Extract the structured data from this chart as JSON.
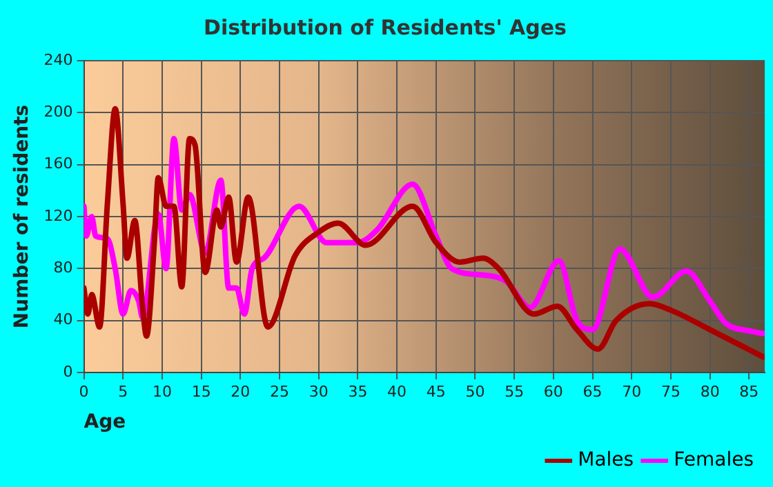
{
  "chart_data": {
    "type": "line",
    "title": "Distribution of Residents' Ages",
    "xlabel": "Age",
    "ylabel": "Number of residents",
    "xlim": [
      0,
      87
    ],
    "xticks": [
      0,
      5,
      10,
      15,
      20,
      25,
      30,
      35,
      40,
      45,
      50,
      55,
      60,
      65,
      70,
      75,
      80,
      85
    ],
    "ylim": [
      0,
      240
    ],
    "yticks": [
      0,
      40,
      80,
      120,
      160,
      200,
      240
    ],
    "grid": true,
    "legend": "bottom right",
    "marker": "none",
    "line_style": "solid",
    "series": [
      {
        "name": "Males",
        "color": "#aa0000",
        "x": [
          0,
          0.5,
          1,
          2,
          3,
          4,
          5,
          5.5,
          6.5,
          7.5,
          8,
          9,
          9.5,
          10.5,
          11.5,
          12.5,
          13.5,
          14.2,
          15.5,
          17,
          17.5,
          18.5,
          19.5,
          21,
          23.5,
          27,
          30,
          32.5,
          36,
          42,
          45,
          48,
          51,
          53,
          57.5,
          60.5,
          63,
          65.7,
          68,
          72.3,
          75,
          80,
          86.8
        ],
        "values": [
          65,
          45,
          60,
          35,
          130,
          203,
          130,
          88,
          117,
          50,
          28,
          100,
          150,
          128,
          128,
          66,
          180,
          175,
          77,
          125,
          112,
          135,
          85,
          135,
          35,
          90,
          108,
          115,
          98,
          128,
          100,
          85,
          88,
          80,
          45,
          51,
          33,
          18,
          40,
          53,
          48,
          33,
          12
        ]
      },
      {
        "name": "Females",
        "color": "#ff00ff",
        "x": [
          0,
          0.3,
          1,
          1.5,
          3,
          4,
          5,
          6,
          7,
          7.5,
          9.5,
          10.5,
          11.5,
          12.5,
          13.5,
          15.5,
          17.5,
          18.5,
          19.5,
          20.5,
          21.5,
          23,
          27.5,
          31,
          35,
          37.5,
          42,
          45,
          47,
          51,
          54,
          57,
          60.7,
          63,
          65,
          68.5,
          72.7,
          77,
          80,
          82,
          85,
          86.8
        ],
        "values": [
          128,
          105,
          120,
          105,
          103,
          80,
          45,
          63,
          55,
          42,
          122,
          80,
          180,
          125,
          137,
          92,
          148,
          65,
          65,
          45,
          80,
          88,
          128,
          100,
          100,
          110,
          145,
          105,
          80,
          75,
          70,
          50,
          86,
          40,
          33,
          95,
          58,
          78,
          55,
          38,
          32,
          30
        ]
      }
    ]
  }
}
